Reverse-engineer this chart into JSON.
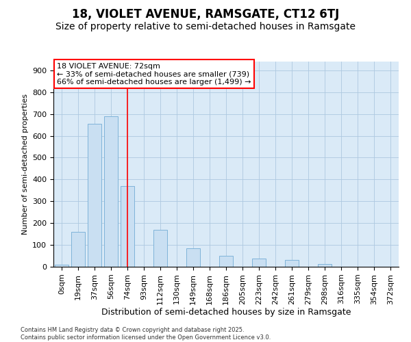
{
  "title1": "18, VIOLET AVENUE, RAMSGATE, CT12 6TJ",
  "title2": "Size of property relative to semi-detached houses in Ramsgate",
  "xlabel": "Distribution of semi-detached houses by size in Ramsgate",
  "ylabel": "Number of semi-detached properties",
  "footnote": "Contains HM Land Registry data © Crown copyright and database right 2025.\nContains public sector information licensed under the Open Government Licence v3.0.",
  "bar_labels": [
    "0sqm",
    "19sqm",
    "37sqm",
    "56sqm",
    "74sqm",
    "93sqm",
    "112sqm",
    "130sqm",
    "149sqm",
    "168sqm",
    "186sqm",
    "205sqm",
    "223sqm",
    "242sqm",
    "261sqm",
    "279sqm",
    "298sqm",
    "316sqm",
    "335sqm",
    "354sqm",
    "372sqm"
  ],
  "bar_values": [
    8,
    160,
    655,
    690,
    370,
    0,
    170,
    0,
    85,
    0,
    50,
    0,
    38,
    0,
    32,
    0,
    13,
    0,
    0,
    0,
    0
  ],
  "bar_color": "#c9dff2",
  "bar_edge_color": "#7fb3d9",
  "grid_color": "#adc8e0",
  "background_color": "#daeaf7",
  "red_line_x": 4.0,
  "annotation_title": "18 VIOLET AVENUE: 72sqm",
  "annotation_line1": "← 33% of semi-detached houses are smaller (739)",
  "annotation_line2": "66% of semi-detached houses are larger (1,499) →",
  "ylim_max": 940,
  "yticks": [
    0,
    100,
    200,
    300,
    400,
    500,
    600,
    700,
    800,
    900
  ],
  "title1_fontsize": 12,
  "title2_fontsize": 10,
  "xlabel_fontsize": 9,
  "ylabel_fontsize": 8,
  "tick_fontsize": 8,
  "annot_fontsize": 8
}
